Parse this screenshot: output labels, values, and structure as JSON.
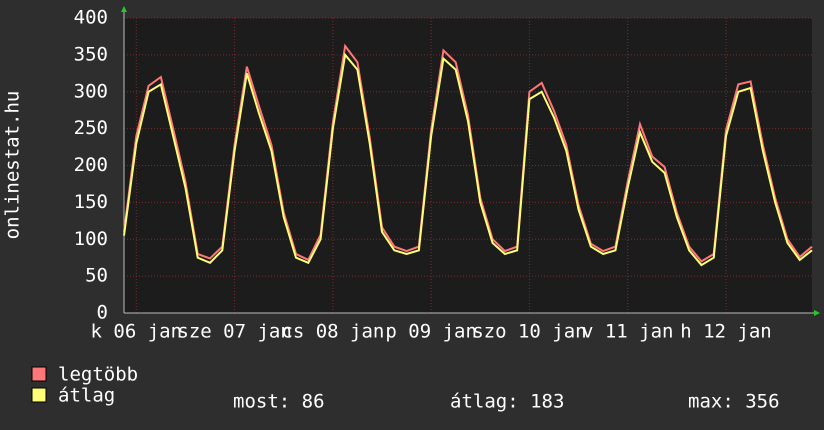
{
  "chart_data": {
    "type": "line",
    "y_label": "onlinestat.hu",
    "x": [
      0,
      3,
      6,
      9,
      12,
      15,
      18,
      21,
      24,
      27,
      30,
      33,
      36,
      39,
      42,
      45,
      48,
      51,
      54,
      57,
      60,
      63,
      66,
      69,
      72,
      75,
      78,
      81,
      84,
      87,
      90,
      93,
      96,
      99,
      102,
      105,
      108,
      111,
      114,
      117,
      120,
      123,
      126,
      129,
      132,
      135,
      138,
      141,
      144,
      147,
      150,
      153,
      156,
      159,
      162,
      165,
      168
    ],
    "series": [
      {
        "name": "legtöbb",
        "color": "#ff7777",
        "values": [
          110,
          240,
          308,
          320,
          250,
          178,
          80,
          74,
          90,
          228,
          334,
          280,
          228,
          136,
          80,
          72,
          106,
          258,
          362,
          340,
          238,
          116,
          90,
          84,
          90,
          248,
          356,
          340,
          268,
          156,
          100,
          84,
          90,
          300,
          312,
          274,
          228,
          146,
          94,
          84,
          90,
          178,
          256,
          212,
          198,
          136,
          90,
          70,
          80,
          248,
          310,
          314,
          228,
          156,
          100,
          76,
          90
        ]
      },
      {
        "name": "átlag",
        "color": "#ffff77",
        "values": [
          105,
          230,
          300,
          310,
          240,
          170,
          75,
          68,
          85,
          220,
          325,
          270,
          220,
          130,
          75,
          68,
          100,
          250,
          350,
          330,
          230,
          110,
          85,
          80,
          85,
          240,
          345,
          330,
          260,
          150,
          95,
          80,
          85,
          290,
          300,
          265,
          220,
          140,
          90,
          80,
          85,
          170,
          245,
          205,
          190,
          130,
          85,
          65,
          75,
          240,
          300,
          305,
          220,
          150,
          95,
          72,
          85
        ]
      }
    ],
    "xlim": [
      0,
      168
    ],
    "xticks": [
      {
        "value": 3,
        "label": "k 06 jan"
      },
      {
        "value": 27,
        "label": "sze 07 jan"
      },
      {
        "value": 51,
        "label": "cs 08 jan"
      },
      {
        "value": 75,
        "label": "p 09 jan"
      },
      {
        "value": 99,
        "label": "szo 10 jan"
      },
      {
        "value": 123,
        "label": "v 11 jan"
      },
      {
        "value": 147,
        "label": "h 12 jan"
      }
    ],
    "ylim": [
      0,
      400
    ],
    "yticks": [
      0,
      50,
      100,
      150,
      200,
      250,
      300,
      350,
      400
    ],
    "grid": true,
    "stats": [
      "most: 86",
      "átlag: 183",
      "max: 356"
    ]
  }
}
